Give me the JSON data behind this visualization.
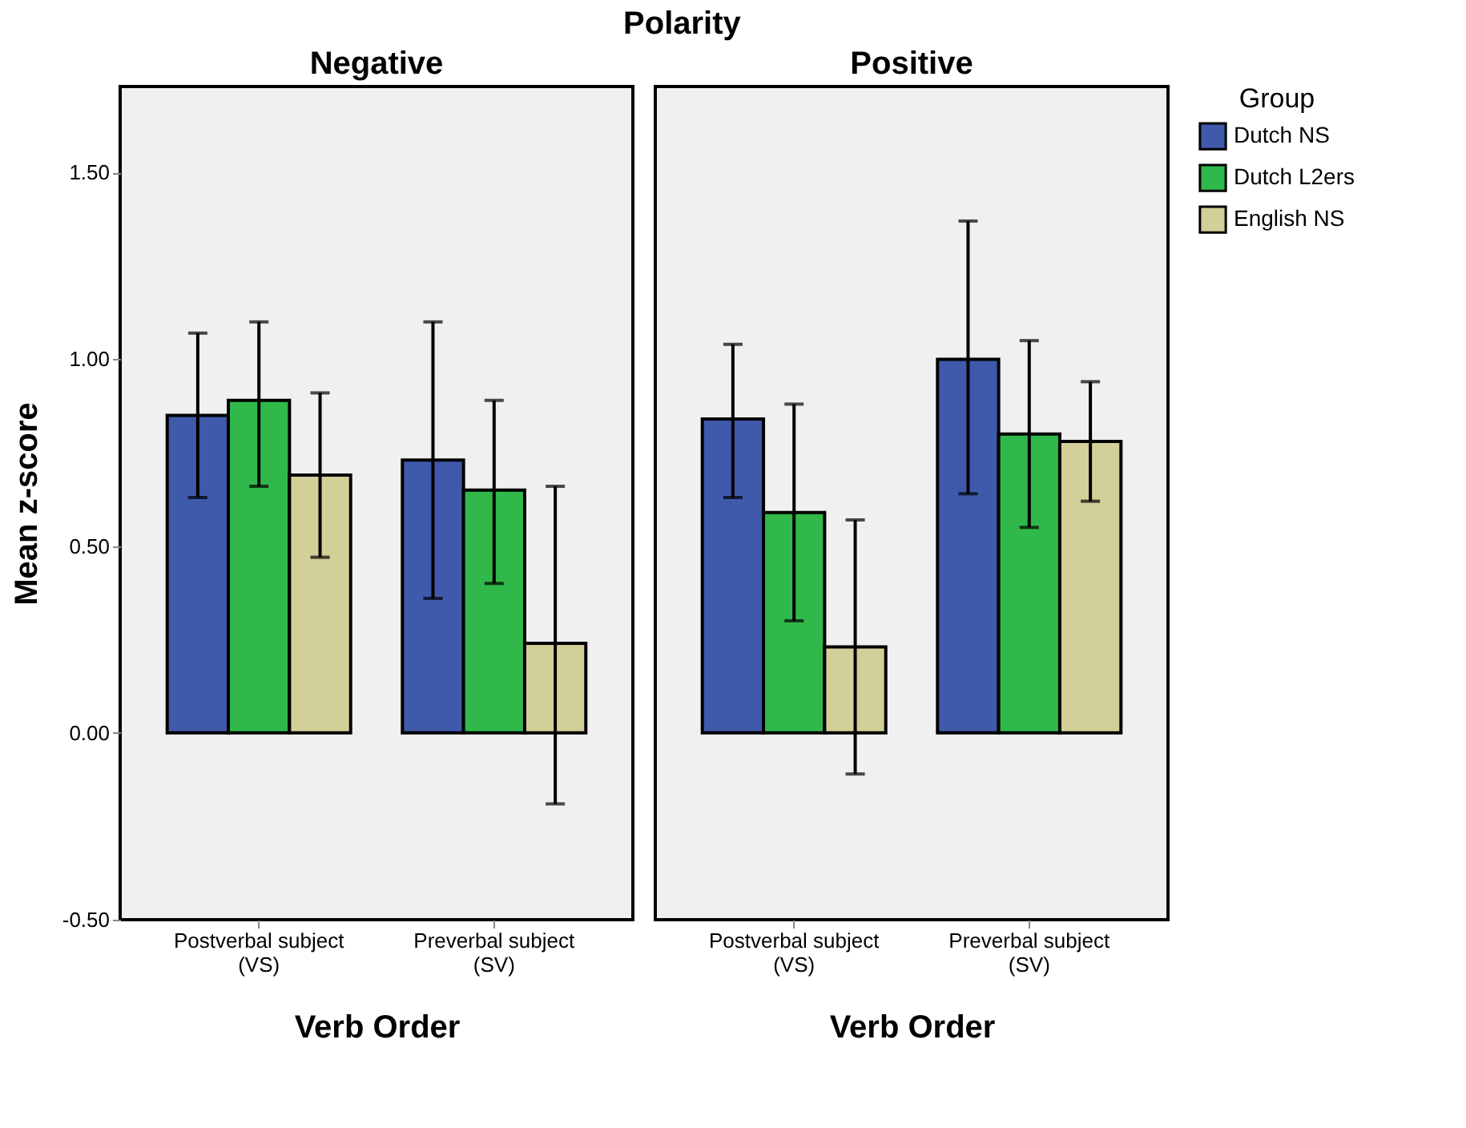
{
  "chart_data": [
    {
      "type": "bar",
      "title": "Negative",
      "annotations": [
        "Polarity"
      ],
      "xlabel": "Verb Order",
      "ylabel": "Mean z-score",
      "categories": [
        "Postverbal subject\n(VS)",
        "Preverbal subject\n(SV)"
      ],
      "ylim": [
        -0.5,
        1.73
      ],
      "yticks": [
        {
          "value": -0.5,
          "label": "-0.50"
        },
        {
          "value": 0,
          "label": "0.00"
        },
        {
          "value": 0.5,
          "label": "0.50"
        },
        {
          "value": 1,
          "label": "1.00"
        },
        {
          "value": 1.5,
          "label": "1.50"
        }
      ],
      "grid": false,
      "legend": "top right",
      "series": [
        {
          "name": "Dutch NS",
          "color": "#3f59ab",
          "values": [
            0.85,
            0.73
          ],
          "errors": [
            [
              0.63,
              1.07
            ],
            [
              0.36,
              1.1
            ]
          ]
        },
        {
          "name": "Dutch L2ers",
          "color": "#31b84a",
          "values": [
            0.89,
            0.65
          ],
          "errors": [
            [
              0.66,
              1.1
            ],
            [
              0.4,
              0.89
            ]
          ]
        },
        {
          "name": "English NS",
          "color": "#d3cf98",
          "values": [
            0.69,
            0.24
          ],
          "errors": [
            [
              0.47,
              0.91
            ],
            [
              -0.19,
              0.66
            ]
          ]
        }
      ]
    },
    {
      "type": "bar",
      "title": "Positive",
      "xlabel": "Verb Order",
      "categories": [
        "Postverbal subject\n(VS)",
        "Preverbal subject\n(SV)"
      ],
      "ylim": [
        -0.5,
        1.73
      ],
      "tick_labels": "x",
      "grid": false,
      "legend": "top right",
      "legend_title": "Group",
      "series": [
        {
          "name": "Dutch NS",
          "color": "#3f59ab",
          "values": [
            0.84,
            1.0
          ],
          "errors": [
            [
              0.63,
              1.04
            ],
            [
              0.64,
              1.37
            ]
          ]
        },
        {
          "name": "Dutch L2ers",
          "color": "#31b84a",
          "values": [
            0.59,
            0.8
          ],
          "errors": [
            [
              0.3,
              0.88
            ],
            [
              0.55,
              1.05
            ]
          ]
        },
        {
          "name": "English NS",
          "color": "#d3cf98",
          "values": [
            0.23,
            0.78
          ],
          "errors": [
            [
              -0.11,
              0.57
            ],
            [
              0.62,
              0.94
            ]
          ]
        }
      ]
    }
  ]
}
